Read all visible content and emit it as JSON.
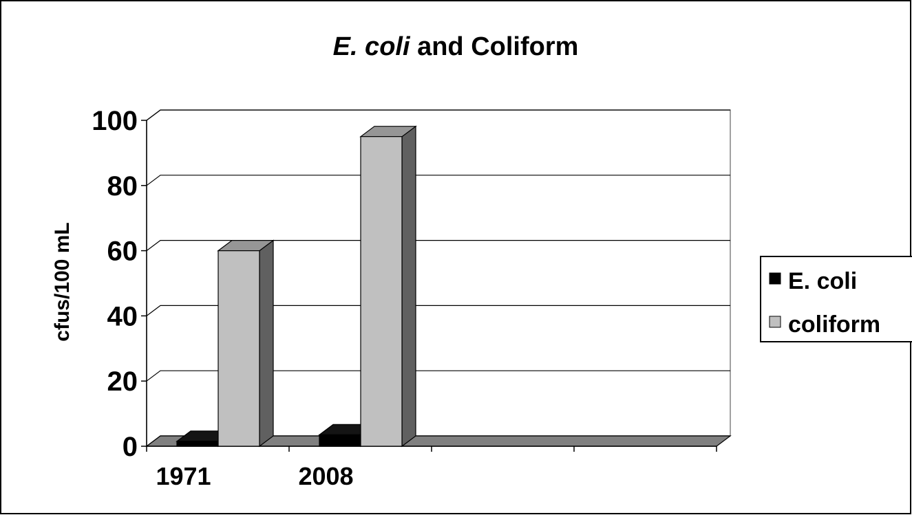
{
  "chart_data": {
    "type": "bar3d",
    "title": [
      "E. coli",
      "and Coliform"
    ],
    "y_label": "cfus/100 mL",
    "categories": [
      "1971",
      "2008",
      null,
      null
    ],
    "series": [
      {
        "name": "E. coli",
        "color": "#000000",
        "values": [
          1.5,
          3.5,
          null,
          null
        ]
      },
      {
        "name": "coliform",
        "color": "#c0c0c0",
        "values": [
          60,
          95,
          null,
          null
        ]
      }
    ],
    "ylim": [
      0,
      100
    ],
    "yticks": [
      0,
      20,
      40,
      60,
      80,
      100
    ],
    "grid": true,
    "legend": "right"
  }
}
